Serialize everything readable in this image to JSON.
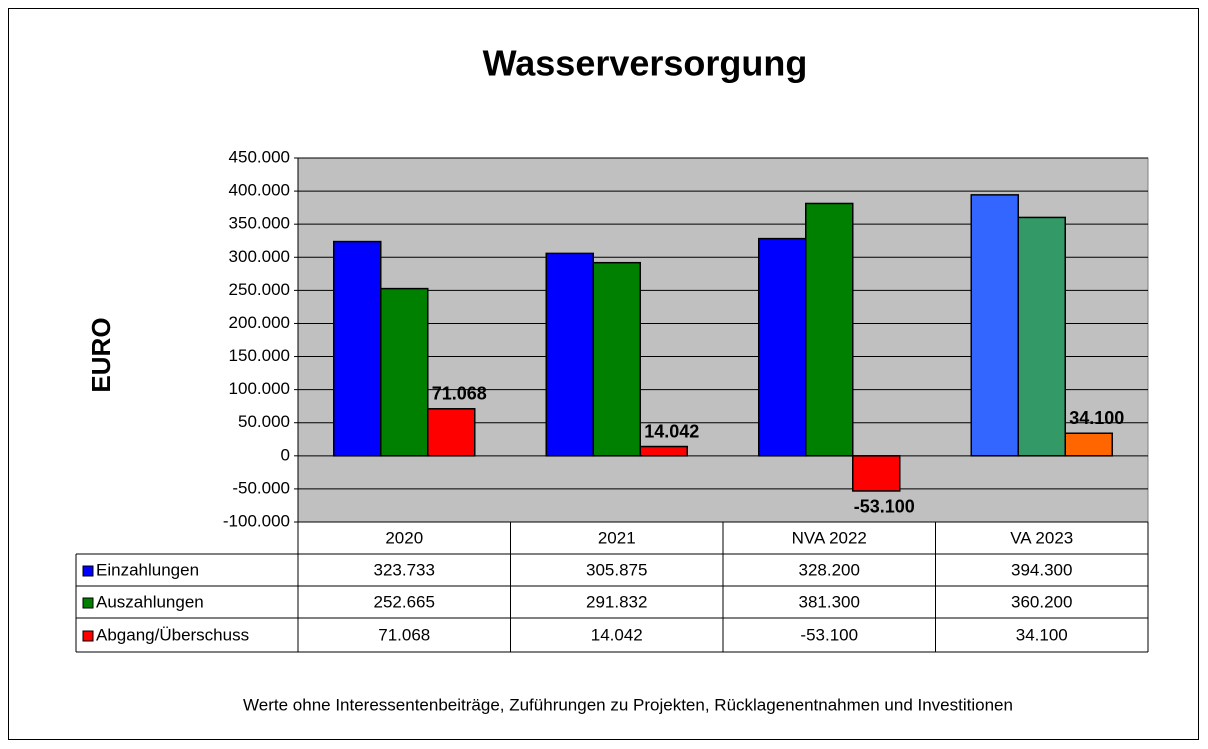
{
  "chart_data": {
    "type": "bar",
    "title": "Wasserversorgung",
    "y_label": "EURO",
    "footnote": "Werte ohne Interessentenbeiträge, Zuführungen zu Projekten, Rücklagenentnahmen und Investitionen",
    "categories": [
      "2020",
      "2021",
      "NVA 2022",
      "VA 2023"
    ],
    "series": [
      {
        "name": "Einzahlungen",
        "color": "#0000ff",
        "colors": [
          "#0000ff",
          "#0000ff",
          "#0000ff",
          "#3366ff"
        ],
        "values": [
          323733,
          305875,
          328200,
          394300
        ],
        "value_labels": [
          "323.733",
          "305.875",
          "328.200",
          "394.300"
        ]
      },
      {
        "name": "Auszahlungen",
        "color": "#008000",
        "colors": [
          "#008000",
          "#008000",
          "#008000",
          "#339966"
        ],
        "values": [
          252665,
          291832,
          381300,
          360200
        ],
        "value_labels": [
          "252.665",
          "291.832",
          "381.300",
          "360.200"
        ]
      },
      {
        "name": "Abgang/Überschuss",
        "color": "#ff0000",
        "colors": [
          "#ff0000",
          "#ff0000",
          "#ff0000",
          "#ff6600"
        ],
        "values": [
          71068,
          14042,
          -53100,
          34100
        ],
        "value_labels": [
          "71.068",
          "14.042",
          "-53.100",
          "34.100"
        ],
        "show_data_labels": true,
        "data_label_colors": [
          "#000000",
          "#000000",
          "#ff0000",
          "#000000"
        ]
      }
    ],
    "ylim": [
      -100000,
      450000
    ],
    "yticks": [
      {
        "value": -100000,
        "label": "-100.000"
      },
      {
        "value": -50000,
        "label": "-50.000"
      },
      0,
      {
        "value": 50000,
        "label": "50.000"
      },
      {
        "value": 100000,
        "label": "100.000"
      },
      {
        "value": 150000,
        "label": "150.000"
      },
      {
        "value": 200000,
        "label": "200.000"
      },
      {
        "value": 250000,
        "label": "250.000"
      },
      {
        "value": 300000,
        "label": "300.000"
      },
      {
        "value": 350000,
        "label": "350.000"
      },
      {
        "value": 400000,
        "label": "400.000"
      },
      {
        "value": 450000,
        "label": "450.000"
      }
    ],
    "grid": true,
    "plot_background": "#c0c0c0",
    "data_table": true
  }
}
